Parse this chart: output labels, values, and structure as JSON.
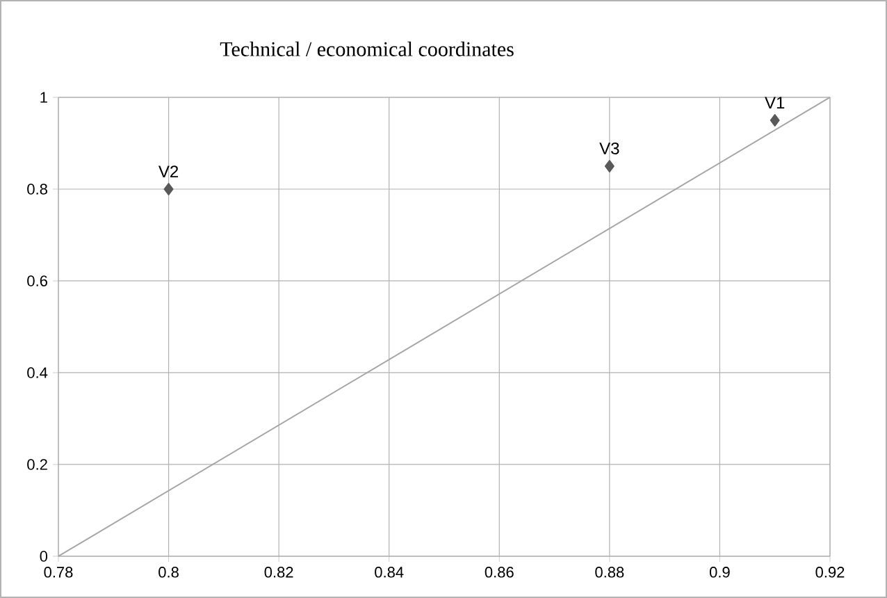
{
  "chart_data": {
    "type": "scatter",
    "title": "Technical / economical coordinates",
    "series": [
      {
        "color": "#595959",
        "marker": "diamond",
        "x": [
          0.91,
          0.8,
          0.88
        ],
        "values": [
          0.95,
          0.8,
          0.85
        ]
      },
      {
        "type": "line",
        "color": "#a6a6a6",
        "marker": "none",
        "line_style": "solid",
        "x": [
          0.78,
          0.92
        ],
        "values": [
          0,
          1
        ]
      }
    ],
    "annotations": [
      {
        "text": "V1",
        "x": 0.91,
        "y": 0.95
      },
      {
        "text": "V2",
        "x": 0.8,
        "y": 0.8
      },
      {
        "text": "V3",
        "x": 0.88,
        "y": 0.85
      }
    ],
    "xlim": [
      0.78,
      0.92
    ],
    "ylim": [
      0,
      1
    ],
    "xticks": [
      0.78,
      0.8,
      0.82,
      0.84,
      0.86,
      0.88,
      0.9,
      0.92
    ],
    "yticks": [
      0,
      0.2,
      0.4,
      0.6,
      0.8,
      1
    ],
    "grid": true
  }
}
